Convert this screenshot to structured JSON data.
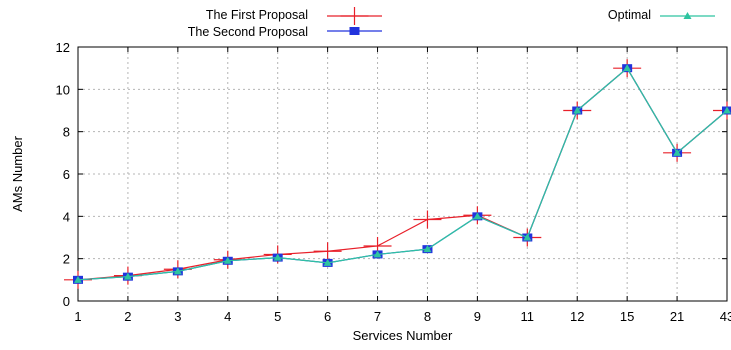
{
  "chart_data": {
    "type": "line",
    "xlabel": "Services Number",
    "ylabel": "AMs Number",
    "categories": [
      "1",
      "2",
      "3",
      "4",
      "5",
      "6",
      "7",
      "8",
      "9",
      "11",
      "12",
      "15",
      "21",
      "43"
    ],
    "ylim": [
      0,
      12
    ],
    "yticks": [
      0,
      2,
      4,
      6,
      8,
      10,
      12
    ],
    "grid": true,
    "legend_position": "top",
    "series": [
      {
        "name": "The First Proposal",
        "color": "#e8202a",
        "marker": "plus",
        "values": [
          1.0,
          1.2,
          1.5,
          1.95,
          2.2,
          2.35,
          2.6,
          3.85,
          4.05,
          3.0,
          9.0,
          11.0,
          7.0,
          9.0
        ]
      },
      {
        "name": "The Second Proposal",
        "color": "#2233dd",
        "marker": "square",
        "values": [
          1.0,
          1.15,
          1.4,
          1.9,
          2.05,
          1.8,
          2.2,
          2.45,
          4.0,
          3.0,
          9.0,
          11.0,
          7.0,
          9.0
        ]
      },
      {
        "name": "Optimal",
        "color": "#2ec4a0",
        "marker": "triangle",
        "values": [
          1.0,
          1.15,
          1.4,
          1.9,
          2.05,
          1.8,
          2.2,
          2.45,
          4.0,
          3.0,
          9.0,
          11.0,
          7.0,
          9.0
        ]
      }
    ]
  }
}
